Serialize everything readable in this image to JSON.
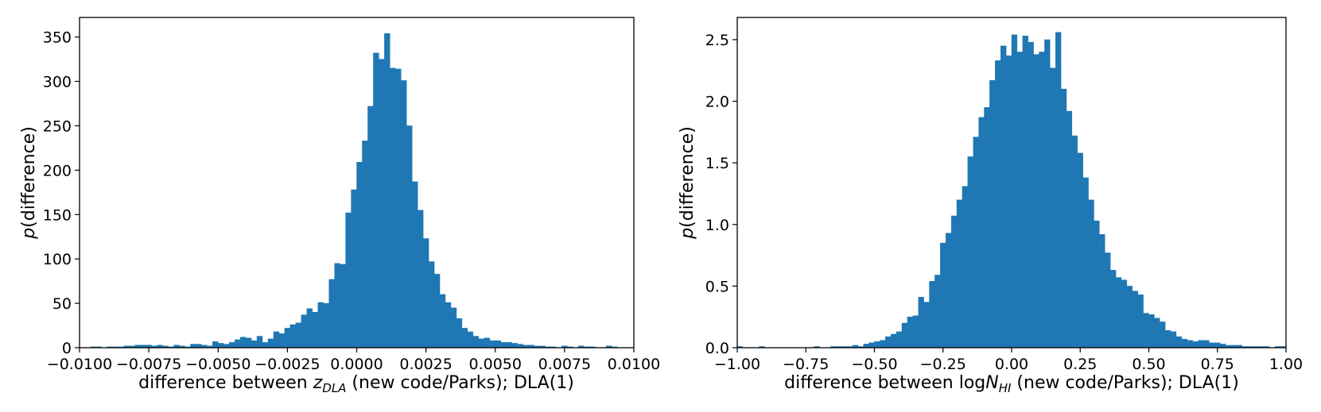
{
  "chart_data": [
    {
      "type": "bar",
      "xlim": [
        -0.01,
        0.01
      ],
      "ylim": [
        0,
        372
      ],
      "x_ticks": [
        -0.01,
        -0.0075,
        -0.005,
        -0.0025,
        0.0,
        0.0025,
        0.005,
        0.0075,
        0.01
      ],
      "x_tick_labels": [
        "−0.0100",
        "−0.0075",
        "−0.0050",
        "−0.0025",
        "0.0000",
        "0.0025",
        "0.0050",
        "0.0075",
        "0.0100"
      ],
      "y_ticks": [
        0,
        50,
        100,
        150,
        200,
        250,
        300,
        350
      ],
      "y_tick_labels": [
        "0",
        "50",
        "100",
        "150",
        "200",
        "250",
        "300",
        "350"
      ],
      "ylabel_italic": "p",
      "ylabel_rest": "(difference)",
      "xlabel_pre": "difference between ",
      "xlabel_var": "z",
      "xlabel_sub": "DLA",
      "xlabel_post": " (new code/Parks); DLA(1)",
      "bin_start": -0.0096,
      "bin_width": 0.0002,
      "values": [
        1,
        1,
        0,
        1,
        1,
        1,
        2,
        2,
        3,
        3,
        3,
        2,
        3,
        2,
        1,
        3,
        2,
        1,
        4,
        4,
        3,
        2,
        7,
        5,
        4,
        6,
        9,
        12,
        11,
        8,
        13,
        6,
        10,
        18,
        16,
        22,
        26,
        28,
        37,
        44,
        40,
        51,
        50,
        77,
        95,
        94,
        152,
        178,
        209,
        233,
        272,
        332,
        325,
        354,
        315,
        314,
        301,
        250,
        187,
        155,
        123,
        97,
        83,
        60,
        51,
        45,
        33,
        22,
        18,
        13,
        10,
        11,
        8,
        8,
        6,
        6,
        5,
        4,
        3,
        3,
        2,
        2,
        1,
        1,
        0,
        2,
        1,
        0,
        2,
        1,
        1,
        0,
        0,
        2,
        1,
        0
      ]
    },
    {
      "type": "bar",
      "xlim": [
        -1.0,
        1.0
      ],
      "ylim": [
        0,
        2.68
      ],
      "x_ticks": [
        -1.0,
        -0.75,
        -0.5,
        -0.25,
        0.0,
        0.25,
        0.5,
        0.75,
        1.0
      ],
      "x_tick_labels": [
        "−1.00",
        "−0.75",
        "−0.50",
        "−0.25",
        "0.00",
        "0.25",
        "0.50",
        "0.75",
        "1.00"
      ],
      "y_ticks": [
        0,
        0.5,
        1.0,
        1.5,
        2.0,
        2.5
      ],
      "y_tick_labels": [
        "0.0",
        "0.5",
        "1.0",
        "1.5",
        "2.0",
        "2.5"
      ],
      "ylabel_italic": "p",
      "ylabel_rest": "(difference)",
      "xlabel_pre": "difference between log",
      "xlabel_var": "N",
      "xlabel_sub": "HI",
      "xlabel_post": " (new code/Parks); DLA(1)",
      "bin_start": -1.0,
      "bin_width": 0.02,
      "values": [
        0.01,
        0,
        0,
        0,
        0.01,
        0,
        0,
        0,
        0,
        0,
        0,
        0,
        0,
        0,
        0.01,
        0,
        0,
        0.01,
        0.01,
        0.01,
        0.01,
        0.02,
        0.01,
        0.03,
        0.04,
        0.05,
        0.06,
        0.09,
        0.11,
        0.13,
        0.2,
        0.25,
        0.26,
        0.41,
        0.37,
        0.54,
        0.59,
        0.85,
        0.93,
        1.07,
        1.2,
        1.31,
        1.55,
        1.71,
        1.87,
        1.95,
        2.17,
        2.33,
        2.45,
        2.37,
        2.54,
        2.4,
        2.53,
        2.48,
        2.38,
        2.4,
        2.5,
        2.27,
        2.56,
        2.1,
        1.92,
        1.72,
        1.58,
        1.38,
        1.2,
        1.03,
        0.92,
        0.77,
        0.63,
        0.57,
        0.55,
        0.5,
        0.46,
        0.43,
        0.28,
        0.27,
        0.24,
        0.21,
        0.14,
        0.13,
        0.09,
        0.07,
        0.06,
        0.05,
        0.06,
        0.06,
        0.04,
        0.04,
        0.03,
        0.02,
        0.02,
        0.02,
        0.01,
        0.01,
        0.01,
        0.01,
        0.01,
        0,
        0.01,
        0.01
      ]
    }
  ]
}
